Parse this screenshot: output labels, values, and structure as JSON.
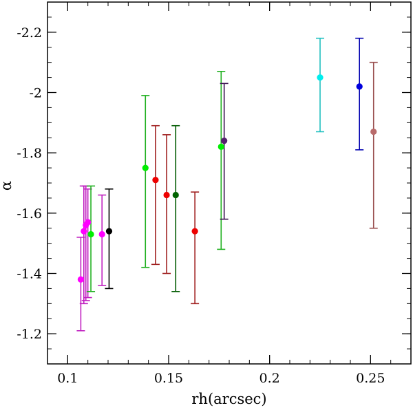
{
  "chart_data": {
    "type": "scatter",
    "title": "",
    "xlabel": "rh(arcsec)",
    "ylabel": "α",
    "xlim": [
      0.09,
      0.27
    ],
    "ylim": [
      -1.1,
      -2.3
    ],
    "y_inverted": true,
    "grid": false,
    "x_ticks": [
      0.1,
      0.15,
      0.2,
      0.25
    ],
    "x_tick_labels": [
      "0.1",
      "0.15",
      "0.2",
      "0.25"
    ],
    "y_ticks": [
      -1.2,
      -1.4,
      -1.6,
      -1.8,
      -2.0,
      -2.2
    ],
    "y_tick_labels": [
      "-1.2",
      "-1.4",
      "-1.6",
      "-1.8",
      "-2",
      "-2.2"
    ],
    "points": [
      {
        "x": 0.1065,
        "y": -1.38,
        "err_lo": -1.21,
        "err_hi": -1.52,
        "color": "#ff00ff",
        "err_color": "#c020c0"
      },
      {
        "x": 0.108,
        "y": -1.54,
        "err_lo": -1.3,
        "err_hi": -1.69,
        "color": "#ff00ff",
        "err_color": "#c020c0"
      },
      {
        "x": 0.109,
        "y": -1.56,
        "err_lo": -1.31,
        "err_hi": -1.69,
        "color": "#ff00ff",
        "err_color": "#c020c0"
      },
      {
        "x": 0.11,
        "y": -1.57,
        "err_lo": -1.32,
        "err_hi": -1.68,
        "color": "#ff00ff",
        "err_color": "#c020c0"
      },
      {
        "x": 0.1115,
        "y": -1.53,
        "err_lo": -1.34,
        "err_hi": -1.69,
        "color": "#00ee00",
        "err_color": "#20b020"
      },
      {
        "x": 0.117,
        "y": -1.53,
        "err_lo": -1.36,
        "err_hi": -1.66,
        "color": "#ff00ff",
        "err_color": "#c020c0"
      },
      {
        "x": 0.1205,
        "y": -1.54,
        "err_lo": -1.35,
        "err_hi": -1.68,
        "color": "#000000",
        "err_color": "#000000"
      },
      {
        "x": 0.1385,
        "y": -1.75,
        "err_lo": -1.42,
        "err_hi": -1.99,
        "color": "#00ee00",
        "err_color": "#20b020"
      },
      {
        "x": 0.1435,
        "y": -1.71,
        "err_lo": -1.43,
        "err_hi": -1.89,
        "color": "#ee0000",
        "err_color": "#a02020"
      },
      {
        "x": 0.149,
        "y": -1.66,
        "err_lo": -1.4,
        "err_hi": -1.86,
        "color": "#ee0000",
        "err_color": "#a02020"
      },
      {
        "x": 0.1535,
        "y": -1.66,
        "err_lo": -1.34,
        "err_hi": -1.89,
        "color": "#006400",
        "err_color": "#005a00"
      },
      {
        "x": 0.163,
        "y": -1.54,
        "err_lo": -1.3,
        "err_hi": -1.67,
        "color": "#ee0000",
        "err_color": "#a02020"
      },
      {
        "x": 0.176,
        "y": -1.82,
        "err_lo": -1.48,
        "err_hi": -2.07,
        "color": "#00ee00",
        "err_color": "#20b020"
      },
      {
        "x": 0.1775,
        "y": -1.84,
        "err_lo": -1.58,
        "err_hi": -2.03,
        "color": "#55206e",
        "err_color": "#3a1050"
      },
      {
        "x": 0.225,
        "y": -2.05,
        "err_lo": -1.87,
        "err_hi": -2.18,
        "color": "#00eeee",
        "err_color": "#20c0c0"
      },
      {
        "x": 0.2445,
        "y": -2.02,
        "err_lo": -1.81,
        "err_hi": -2.18,
        "color": "#0000dd",
        "err_color": "#0000b0"
      },
      {
        "x": 0.2515,
        "y": -1.87,
        "err_lo": -1.55,
        "err_hi": -2.1,
        "color": "#b86a6a",
        "err_color": "#9a5050"
      }
    ]
  }
}
